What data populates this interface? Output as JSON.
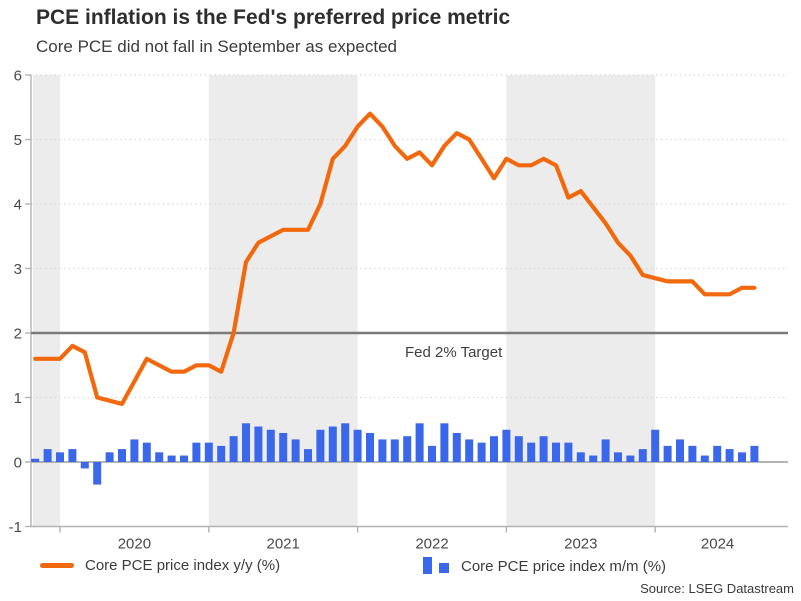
{
  "header": {
    "title": "PCE inflation is the Fed's preferred price metric",
    "subtitle": "Core PCE did not fall in September as expected"
  },
  "legend": [
    {
      "label": "Core PCE price index y/y (%)",
      "type": "line",
      "color": "#F2690D"
    },
    {
      "label": "Core PCE price index m/m (%)",
      "type": "bar",
      "color": "#3B68EA"
    }
  ],
  "source": "Source: LSEG Datastream",
  "chart_data": {
    "type": "combo",
    "title": "PCE inflation is the Fed's preferred price metric",
    "subtitle": "Core PCE did not fall in September as expected",
    "xlabel": "",
    "ylabel": "",
    "ylim": [
      -1,
      6
    ],
    "yticks": [
      -1,
      0,
      1,
      2,
      3,
      4,
      5,
      6
    ],
    "grid": "dotted horizontal at integers",
    "legend_position": "bottom",
    "x_tick_years": [
      "2020",
      "2021",
      "2022",
      "2023",
      "2024"
    ],
    "shaded_band_years": [
      2019,
      2021,
      2023
    ],
    "target_line": {
      "value": 2,
      "label": "Fed 2% Target"
    },
    "colors": {
      "band": "#ECECEC",
      "grid": "#D9D9D9",
      "axis": "#B3B3B3",
      "zero_line": "#9B9B9B",
      "target_line": "#7A7A7A",
      "line_series": "#F2690D",
      "bar_series": "#3B68EA"
    },
    "months": [
      "2019-11",
      "2019-12",
      "2020-01",
      "2020-02",
      "2020-03",
      "2020-04",
      "2020-05",
      "2020-06",
      "2020-07",
      "2020-08",
      "2020-09",
      "2020-10",
      "2020-11",
      "2020-12",
      "2021-01",
      "2021-02",
      "2021-03",
      "2021-04",
      "2021-05",
      "2021-06",
      "2021-07",
      "2021-08",
      "2021-09",
      "2021-10",
      "2021-11",
      "2021-12",
      "2022-01",
      "2022-02",
      "2022-03",
      "2022-04",
      "2022-05",
      "2022-06",
      "2022-07",
      "2022-08",
      "2022-09",
      "2022-10",
      "2022-11",
      "2022-12",
      "2023-01",
      "2023-02",
      "2023-03",
      "2023-04",
      "2023-05",
      "2023-06",
      "2023-07",
      "2023-08",
      "2023-09",
      "2023-10",
      "2023-11",
      "2023-12",
      "2024-01",
      "2024-02",
      "2024-03",
      "2024-04",
      "2024-05",
      "2024-06",
      "2024-07",
      "2024-08",
      "2024-09"
    ],
    "series": [
      {
        "name": "Core PCE price index y/y (%)",
        "type": "line",
        "color": "#F2690D",
        "values": [
          1.6,
          1.6,
          1.6,
          1.8,
          1.7,
          1.0,
          0.95,
          0.9,
          1.25,
          1.6,
          1.5,
          1.4,
          1.4,
          1.5,
          1.5,
          1.4,
          2.0,
          3.1,
          3.4,
          3.5,
          3.6,
          3.6,
          3.6,
          4.0,
          4.7,
          4.9,
          5.2,
          5.4,
          5.2,
          4.9,
          4.7,
          4.8,
          4.6,
          4.9,
          5.1,
          5.0,
          4.7,
          4.4,
          4.7,
          4.6,
          4.6,
          4.7,
          4.6,
          4.1,
          4.2,
          3.95,
          3.7,
          3.4,
          3.2,
          2.9,
          2.85,
          2.8,
          2.8,
          2.8,
          2.6,
          2.6,
          2.6,
          2.7,
          2.7
        ]
      },
      {
        "name": "Core PCE price index m/m (%)",
        "type": "bar",
        "color": "#3B68EA",
        "values": [
          0.05,
          0.2,
          0.15,
          0.2,
          -0.1,
          -0.35,
          0.15,
          0.2,
          0.35,
          0.3,
          0.15,
          0.1,
          0.1,
          0.3,
          0.3,
          0.25,
          0.4,
          0.6,
          0.55,
          0.5,
          0.45,
          0.35,
          0.2,
          0.5,
          0.55,
          0.6,
          0.5,
          0.45,
          0.35,
          0.35,
          0.4,
          0.6,
          0.25,
          0.6,
          0.45,
          0.35,
          0.3,
          0.4,
          0.5,
          0.4,
          0.3,
          0.4,
          0.3,
          0.3,
          0.15,
          0.1,
          0.35,
          0.15,
          0.1,
          0.2,
          0.5,
          0.25,
          0.35,
          0.25,
          0.1,
          0.25,
          0.2,
          0.15,
          0.25
        ]
      }
    ]
  }
}
